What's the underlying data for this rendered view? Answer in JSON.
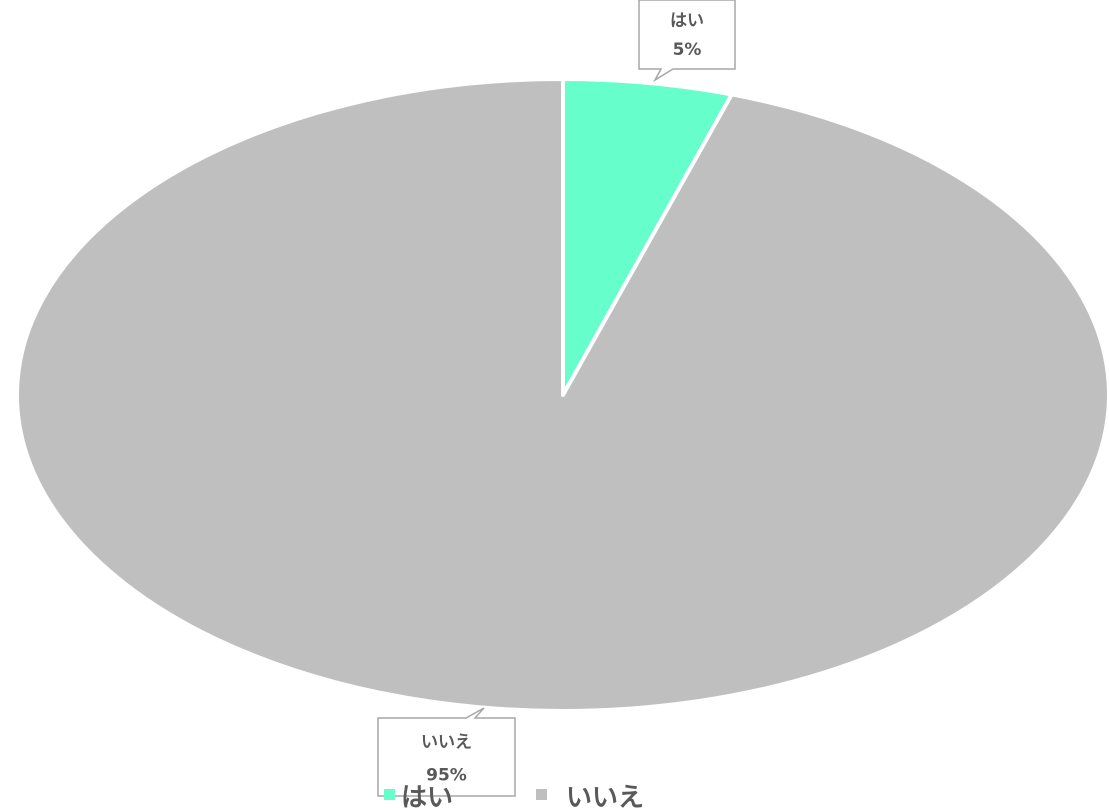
{
  "chart_data": {
    "type": "pie",
    "categories": [
      "はい",
      "いいえ"
    ],
    "values": [
      5,
      95
    ],
    "value_format": "percent",
    "colors": [
      "#66ffcc",
      "#bfbfbf"
    ],
    "slice_border_color": "#ffffff",
    "data_labels": [
      {
        "category": "はい",
        "value": "5%"
      },
      {
        "category": "いいえ",
        "value": "95%"
      }
    ],
    "legend": {
      "entries": [
        "はい",
        "いいえ"
      ],
      "placement": "bottom"
    },
    "start_angle": "12 o'clock",
    "direction": "clockwise"
  }
}
